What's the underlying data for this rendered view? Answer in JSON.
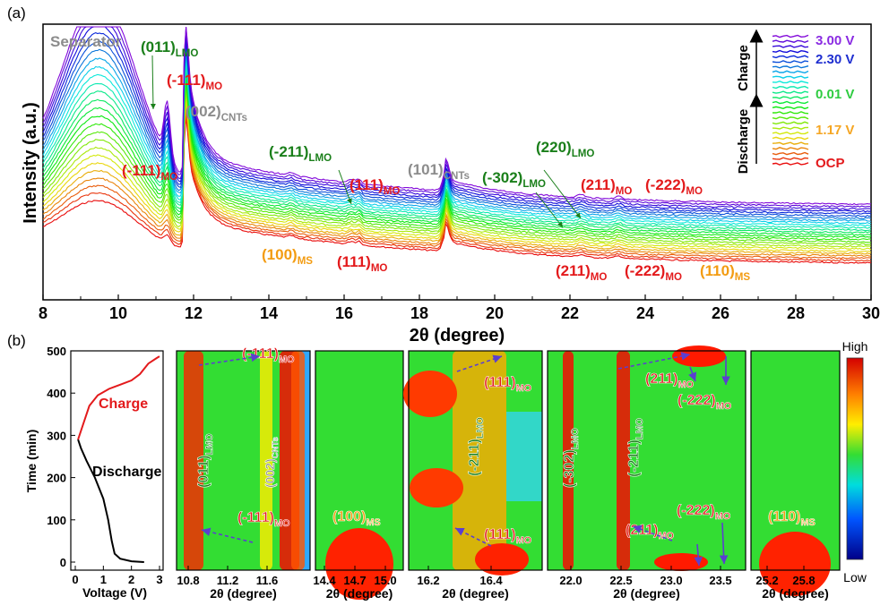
{
  "panel_labels": {
    "a": "(a)",
    "b": "(b)"
  },
  "colors": {
    "red": "#e31a1c",
    "green": "#1a7f1a",
    "gray": "#8c8c8c",
    "orange": "#f39c12",
    "purple": "#8a2be2",
    "blue": "#1f2fd0",
    "lime": "#2ecc40",
    "accent_arrow": "#5b3fd0"
  },
  "chart_data": [
    {
      "id": "xrd-waterfall",
      "type": "line",
      "xlabel": "2θ (degree)",
      "ylabel": "Intensity (a.u.)",
      "xlim": [
        8,
        30
      ],
      "xticks": [
        8,
        10,
        12,
        14,
        16,
        18,
        20,
        22,
        24,
        26,
        28,
        30
      ],
      "grid": false,
      "series_count": 26,
      "series_colors_from_bottom": [
        "red",
        "orange",
        "yellow",
        "green",
        "cyan",
        "blue",
        "violet"
      ],
      "legend": {
        "placement": "top-right",
        "arrows": [
          "Charge",
          "Discharge"
        ],
        "entries": [
          {
            "label": "3.00 V",
            "color": "#8a2be2"
          },
          {
            "label": "2.30 V",
            "color": "#1f2fd0"
          },
          {
            "label": "0.01 V",
            "color": "#2ecc40"
          },
          {
            "label": "1.17 V",
            "color": "#f5a623"
          },
          {
            "label": "OCP",
            "color": "#e31a1c"
          }
        ]
      },
      "annotations": [
        {
          "main": "Separator",
          "sub": "",
          "color": "gray",
          "x": 8.6
        },
        {
          "main": "(011)",
          "sub": "LMO",
          "color": "green",
          "x": 10.8
        },
        {
          "main": "(-111)",
          "sub": "MO",
          "color": "red",
          "x": 11.1
        },
        {
          "main": "(002)",
          "sub": "CNTs",
          "color": "gray",
          "x": 11.8
        },
        {
          "main": "(-111)",
          "sub": "MO",
          "color": "red",
          "x": 10.3
        },
        {
          "main": "(-211)",
          "sub": "LMO",
          "color": "green",
          "x": 15.9
        },
        {
          "main": "(111)",
          "sub": "MO",
          "color": "red",
          "x": 17.0
        },
        {
          "main": "(101)",
          "sub": "CNTs",
          "color": "gray",
          "x": 18.6
        },
        {
          "main": "(-302)",
          "sub": "LMO",
          "color": "green",
          "x": 20.3
        },
        {
          "main": "(220)",
          "sub": "LMO",
          "color": "green",
          "x": 21.9
        },
        {
          "main": "(211)",
          "sub": "MO",
          "color": "red",
          "x": 23.5
        },
        {
          "main": "(-222)",
          "sub": "MO",
          "color": "red",
          "x": 24.9
        },
        {
          "main": "(100)",
          "sub": "MS",
          "color": "orange",
          "x": 14.3
        },
        {
          "main": "(111)",
          "sub": "MO",
          "color": "red",
          "x": 16.1
        },
        {
          "main": "(211)",
          "sub": "MO",
          "color": "red",
          "x": 23.0
        },
        {
          "main": "(-222)",
          "sub": "MO",
          "color": "red",
          "x": 24.5
        },
        {
          "main": "(110)",
          "sub": "MS",
          "color": "orange",
          "x": 25.7
        }
      ]
    },
    {
      "id": "voltage-profile",
      "type": "line",
      "xlabel": "Voltage (V)",
      "ylabel": "Time (min)",
      "xlim": [
        0,
        3
      ],
      "ylim": [
        0,
        500
      ],
      "xticks": [
        0,
        1,
        2,
        3
      ],
      "yticks": [
        0,
        100,
        200,
        300,
        400,
        500
      ],
      "series": [
        {
          "name": "Discharge",
          "color": "#000000",
          "x": [
            2.45,
            2.0,
            1.6,
            1.4,
            1.3,
            1.17,
            1.0,
            0.7,
            0.4,
            0.2,
            0.1
          ],
          "y": [
            0,
            2,
            8,
            20,
            50,
            100,
            150,
            200,
            240,
            270,
            290
          ]
        },
        {
          "name": "Charge",
          "color": "#e31a1c",
          "x": [
            0.1,
            0.3,
            0.5,
            0.8,
            1.2,
            1.6,
            2.0,
            2.3,
            2.6,
            2.9,
            3.0
          ],
          "y": [
            290,
            330,
            370,
            395,
            410,
            420,
            430,
            445,
            470,
            483,
            487
          ]
        }
      ]
    },
    {
      "id": "contour-1",
      "type": "heatmap",
      "xlabel": "2θ (degree)",
      "xlim": [
        10.7,
        12.0
      ],
      "xticks": [
        "10.8",
        "11.2",
        "11.6"
      ],
      "labels": [
        {
          "main": "(-111)",
          "sub": "MO",
          "color": "red"
        },
        {
          "main": "(011)",
          "sub": "LMO",
          "color": "green"
        },
        {
          "main": "(002)",
          "sub": "CNTs",
          "color": "gray"
        },
        {
          "main": "(-111)",
          "sub": "MO",
          "color": "red"
        }
      ]
    },
    {
      "id": "contour-2",
      "type": "heatmap",
      "xlabel": "2θ (degree)",
      "xlim": [
        14.4,
        15.0
      ],
      "xticks": [
        "14.4",
        "14.7",
        "15.0"
      ],
      "labels": [
        {
          "main": "(100)",
          "sub": "MS",
          "color": "orange"
        }
      ]
    },
    {
      "id": "contour-3",
      "type": "heatmap",
      "xlabel": "2θ (degree)",
      "xlim": [
        16.0,
        16.6
      ],
      "xticks": [
        "16.2",
        "16.4"
      ],
      "labels": [
        {
          "main": "(111)",
          "sub": "MO",
          "color": "red"
        },
        {
          "main": "(-211)",
          "sub": "LMO",
          "color": "green"
        },
        {
          "main": "(111)",
          "sub": "MO",
          "color": "red"
        }
      ]
    },
    {
      "id": "contour-4",
      "type": "heatmap",
      "xlabel": "2θ (degree)",
      "xlim": [
        21.7,
        23.7
      ],
      "xticks": [
        "22.0",
        "22.5",
        "23.0",
        "23.5"
      ],
      "labels": [
        {
          "main": "(211)",
          "sub": "MO",
          "color": "red"
        },
        {
          "main": "(-222)",
          "sub": "MO",
          "color": "red"
        },
        {
          "main": "(-302)",
          "sub": "LMO",
          "color": "green"
        },
        {
          "main": "(-211)",
          "sub": "LMO",
          "color": "green"
        },
        {
          "main": "(-222)",
          "sub": "MO",
          "color": "red"
        },
        {
          "main": "(211)",
          "sub": "MO",
          "color": "red"
        }
      ]
    },
    {
      "id": "contour-5",
      "type": "heatmap",
      "xlabel": "2θ (degree)",
      "xlim": [
        25.0,
        26.1
      ],
      "xticks": [
        "25.2",
        "25.8"
      ],
      "labels": [
        {
          "main": "(110)",
          "sub": "MS",
          "color": "orange"
        }
      ]
    }
  ],
  "colorbar": {
    "high": "High",
    "low": "Low"
  }
}
